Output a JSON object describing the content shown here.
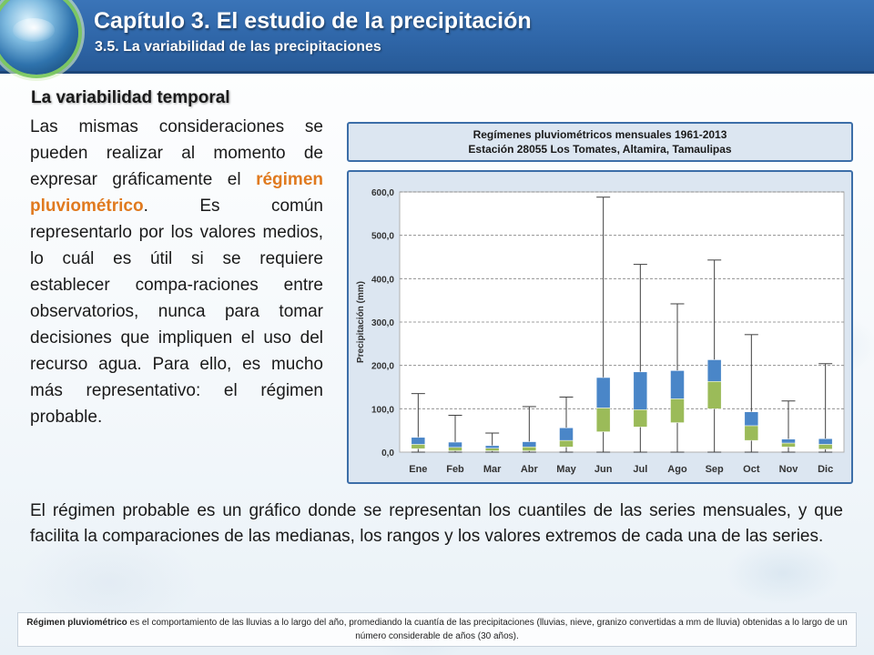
{
  "header": {
    "title": "Capítulo 3. El estudio de la precipitación",
    "subtitle": "3.5. La variabilidad de las precipitaciones"
  },
  "section": {
    "heading": "La variabilidad temporal",
    "para1_before": "Las mismas consideraciones se pueden realizar al momento de expresar gráficamente el ",
    "para1_highlight": "régimen pluviométrico",
    "para1_after": ". Es común representarlo por los valores medios, lo cuál es útil si se requiere establecer compa-raciones entre observatorios, nunca para tomar decisiones que impliquen el uso del recurso agua. Para ello, es mucho más representativo: el régimen probable.",
    "para2": "El régimen probable es un gráfico donde se representan los cuantiles de las series mensuales,  y que facilita la comparaciones de las medianas, los rangos y los valores extremos de cada una de las series."
  },
  "chart_title": {
    "line1": "Regímenes pluviométricos mensuales 1961-2013",
    "line2": "Estación 28055 Los Tomates, Altamira, Tamaulipas"
  },
  "footer": {
    "term": "Régimen pluviométrico",
    "definition": " es el comportamiento de las lluvias a lo largo del año, promediando la cuantía de las precipitaciones (lluvias, nieve, granizo convertidas a mm de lluvia) obtenidas a lo largo de un número considerable de años (30 años)."
  },
  "colors": {
    "q3_box": "#4a86c8",
    "q1_box": "#9bbb59",
    "whisker": "#404040",
    "gridline": "#808080"
  },
  "chart_data": {
    "type": "boxplot",
    "title": "Regímenes pluviométricos mensuales 1961-2013",
    "subtitle": "Estación 28055 Los Tomates, Altamira, Tamaulipas",
    "xlabel": "",
    "ylabel": "Precipitación (mm)",
    "ylim": [
      0,
      600
    ],
    "yticks": [
      "0,0",
      "100,0",
      "200,0",
      "300,0",
      "400,0",
      "500,0",
      "600,0"
    ],
    "ytick_values": [
      0,
      100,
      200,
      300,
      400,
      500,
      600
    ],
    "grid": true,
    "categories": [
      "Ene",
      "Feb",
      "Mar",
      "Abr",
      "May",
      "Jun",
      "Jul",
      "Ago",
      "Sep",
      "Oct",
      "Nov",
      "Dic"
    ],
    "min": [
      0,
      0,
      0,
      0,
      0,
      0,
      0,
      0,
      0,
      0,
      0,
      0
    ],
    "q1": [
      8,
      3,
      3,
      3,
      12,
      47,
      58,
      68,
      100,
      27,
      12,
      7
    ],
    "median": [
      18,
      11,
      9,
      12,
      27,
      102,
      98,
      123,
      163,
      61,
      21,
      18
    ],
    "q3": [
      34,
      23,
      15,
      24,
      56,
      172,
      185,
      188,
      213,
      93,
      30,
      31
    ],
    "max": [
      135,
      85,
      44,
      105,
      127,
      588,
      433,
      342,
      443,
      271,
      118,
      204
    ]
  }
}
